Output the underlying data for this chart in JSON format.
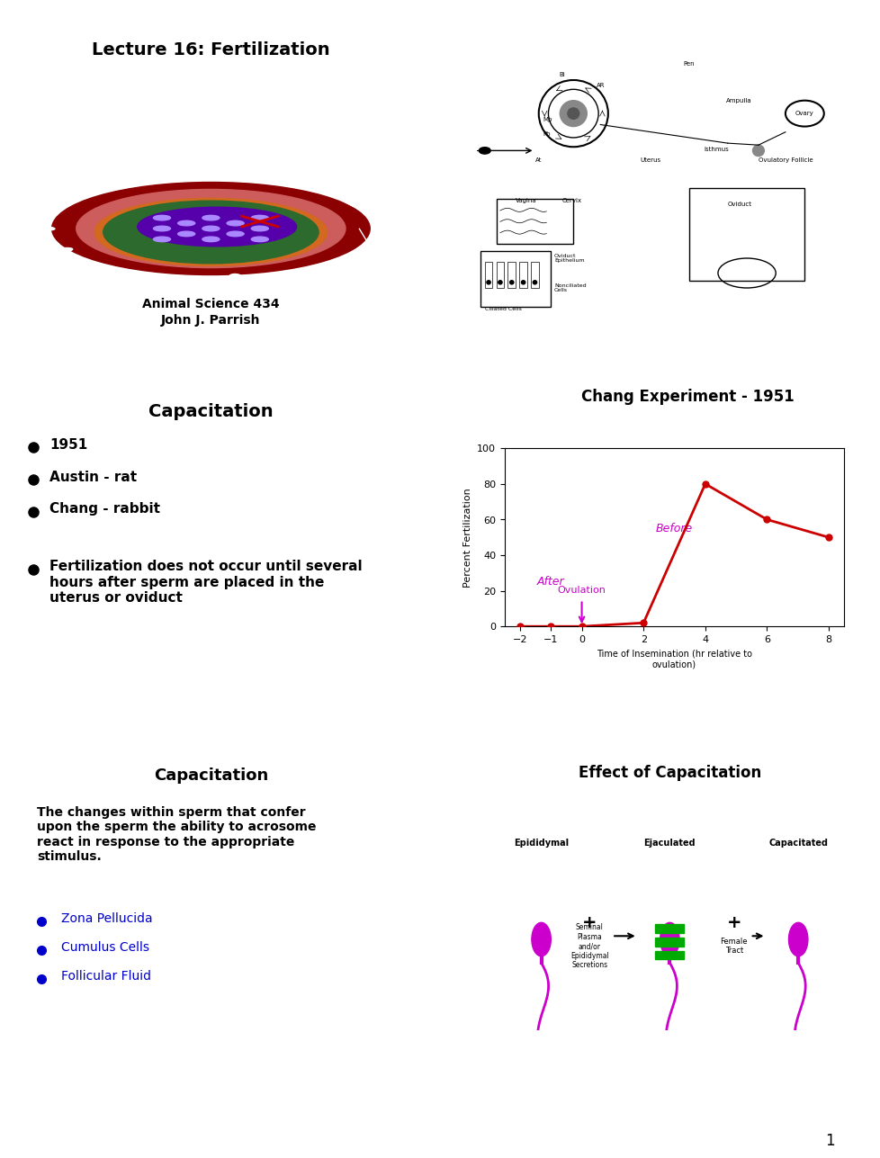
{
  "title": "Fertilization Capacitation Chang Experiment",
  "page_number": "1",
  "background_color": "#ffffff",
  "panel_border_color": "#000000",
  "panels": {
    "top_left": {
      "title": "Lecture 16: Fertilization",
      "subtitle1": "Animal Science 434",
      "subtitle2": "John J. Parrish",
      "title_bold": true
    },
    "top_right": {
      "type": "diagram",
      "labels": [
        "Bi",
        "AR",
        "Pen",
        "Ampulla",
        "Ovary",
        "Isthmus",
        "Ovulatory Follicle",
        "Uterus",
        "Vagina",
        "Cervix",
        "Oviduct",
        "Oviduct\nEpithelium",
        "Nonciliated\nCells",
        "Ciliated Cells",
        "At",
        "Mp",
        "Pb"
      ]
    },
    "mid_left": {
      "title": "Capacitation",
      "title_bold": true,
      "bullets": [
        "1951",
        "Austin - rat",
        "Chang - rabbit",
        "Fertilization does not occur until several\nhours after sperm are placed in the\nuterus or oviduct"
      ]
    },
    "mid_right": {
      "title": "Chang Experiment - 1951",
      "title_bold": true,
      "xlabel": "Time of Insemination (hr relative to\novulation)",
      "ylabel": "Percent Fertilization",
      "x_data": [
        -2,
        -1,
        0,
        2,
        4,
        6,
        8
      ],
      "y_data": [
        0,
        0,
        0,
        2,
        80,
        60,
        50
      ],
      "xlim": [
        -2.5,
        8.5
      ],
      "ylim": [
        0,
        100
      ],
      "xticks": [
        -2,
        -1,
        0,
        2,
        4,
        6,
        8
      ],
      "yticks": [
        0,
        20,
        40,
        60,
        80,
        100
      ],
      "ovulation_x": 0,
      "ovulation_label": "Ovulation",
      "after_label": "After",
      "before_label": "Before",
      "data_color": "#cc0000",
      "ovulation_color": "#cc00cc",
      "after_color": "#cc00cc",
      "before_color": "#cc00cc"
    },
    "bot_left": {
      "title": "Capacitation",
      "title_bold": true,
      "title_color": "#000000",
      "body_text": "The changes within sperm that confer\nupon the sperm the ability to acrosome\nreact in response to the appropriate\nstimulus.",
      "body_bold": true,
      "bullets": [
        "Zona Pellucida",
        "Cumulus Cells",
        "Follicular Fluid"
      ],
      "bullet_color": "#0000cc"
    },
    "bot_right": {
      "title": "Effect of Capacitation",
      "title_bold": true,
      "labels": [
        "Epididymal",
        "Ejaculated",
        "Capacitated"
      ],
      "sublabels": [
        "Seminal\nPlasma\nand/or\nEpididymal\nSecretions",
        "Female\nTract"
      ],
      "sperm_colors": [
        "#cc00cc",
        "#cc00cc",
        "#cc00cc"
      ],
      "cap_color": "#00aa00"
    }
  }
}
